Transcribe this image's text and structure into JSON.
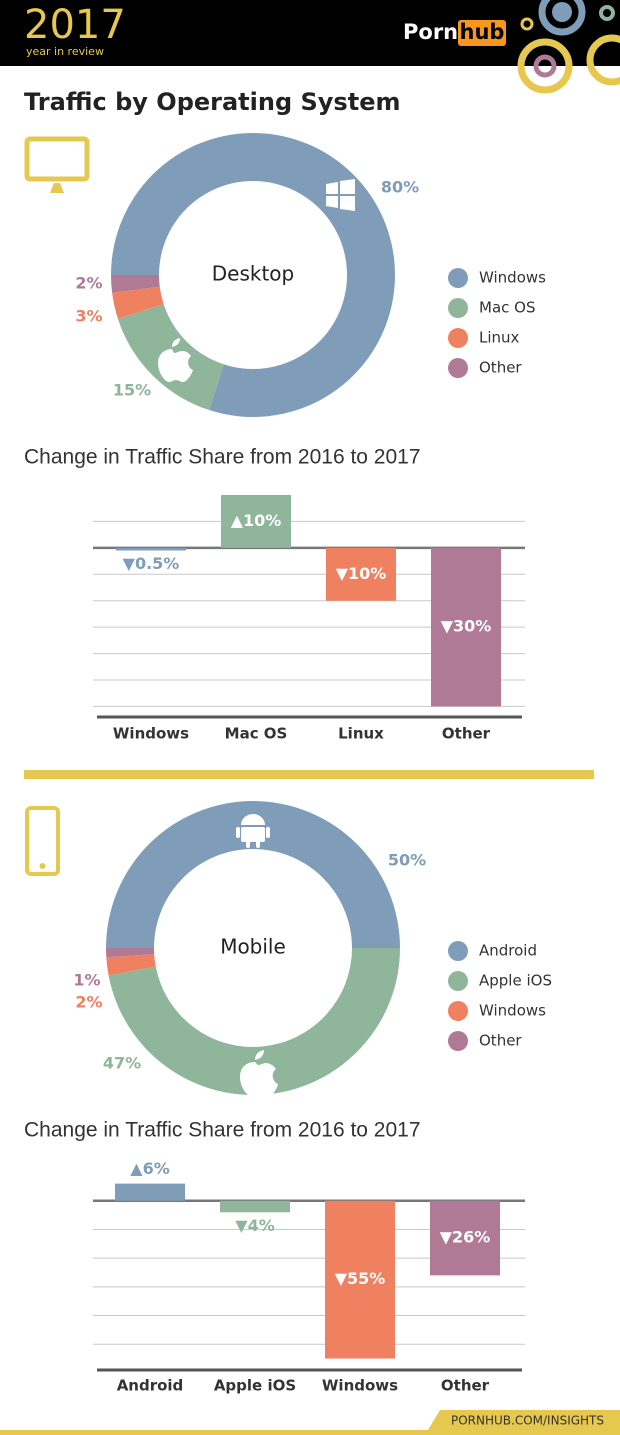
{
  "header": {
    "year": "2017",
    "tagline": "year in review",
    "brand_left": "Porn",
    "brand_right": "hub"
  },
  "title": "Traffic by Operating System",
  "chart_data": [
    {
      "type": "pie",
      "center_label": "Desktop",
      "categories": [
        "Windows",
        "Mac OS",
        "Linux",
        "Other"
      ],
      "values": [
        80,
        15,
        3,
        2
      ],
      "value_labels": [
        "80%",
        "15%",
        "3%",
        "2%"
      ],
      "colors": [
        "#7f9db9",
        "#8fb59b",
        "#ef8160",
        "#b07a96"
      ]
    },
    {
      "type": "bar",
      "title": "Change in Traffic Share from 2016 to 2017",
      "categories": [
        "Windows",
        "Mac OS",
        "Linux",
        "Other"
      ],
      "values": [
        -0.5,
        10,
        -10,
        -30
      ],
      "value_labels": [
        "▼0.5%",
        "▲10%",
        "▼10%",
        "▼30%"
      ],
      "colors": [
        "#7f9db9",
        "#8fb59b",
        "#ef8160",
        "#b07a96"
      ],
      "ylim": [
        -32,
        10
      ],
      "yticks": [
        -30,
        -25,
        -20,
        -15,
        -10,
        -5,
        0,
        5
      ],
      "grid": true
    },
    {
      "type": "pie",
      "center_label": "Mobile",
      "categories": [
        "Android",
        "Apple iOS",
        "Windows",
        "Other"
      ],
      "values": [
        50,
        47,
        2,
        1
      ],
      "value_labels": [
        "50%",
        "47%",
        "2%",
        "1%"
      ],
      "colors": [
        "#7f9db9",
        "#8fb59b",
        "#ef8160",
        "#b07a96"
      ]
    },
    {
      "type": "bar",
      "title": "Change in Traffic Share from 2016 to 2017",
      "categories": [
        "Android",
        "Apple iOS",
        "Windows",
        "Other"
      ],
      "values": [
        6,
        -4,
        -55,
        -26
      ],
      "value_labels": [
        "▲6%",
        "▼4%",
        "▼55%",
        "▼26%"
      ],
      "colors": [
        "#7f9db9",
        "#8fb59b",
        "#ef8160",
        "#b07a96"
      ],
      "ylim": [
        -59,
        9
      ],
      "yticks": [
        -50,
        -40,
        -30,
        -20,
        -10,
        0
      ],
      "grid": true
    }
  ],
  "footer": "PORNHUB.COM/INSIGHTS"
}
